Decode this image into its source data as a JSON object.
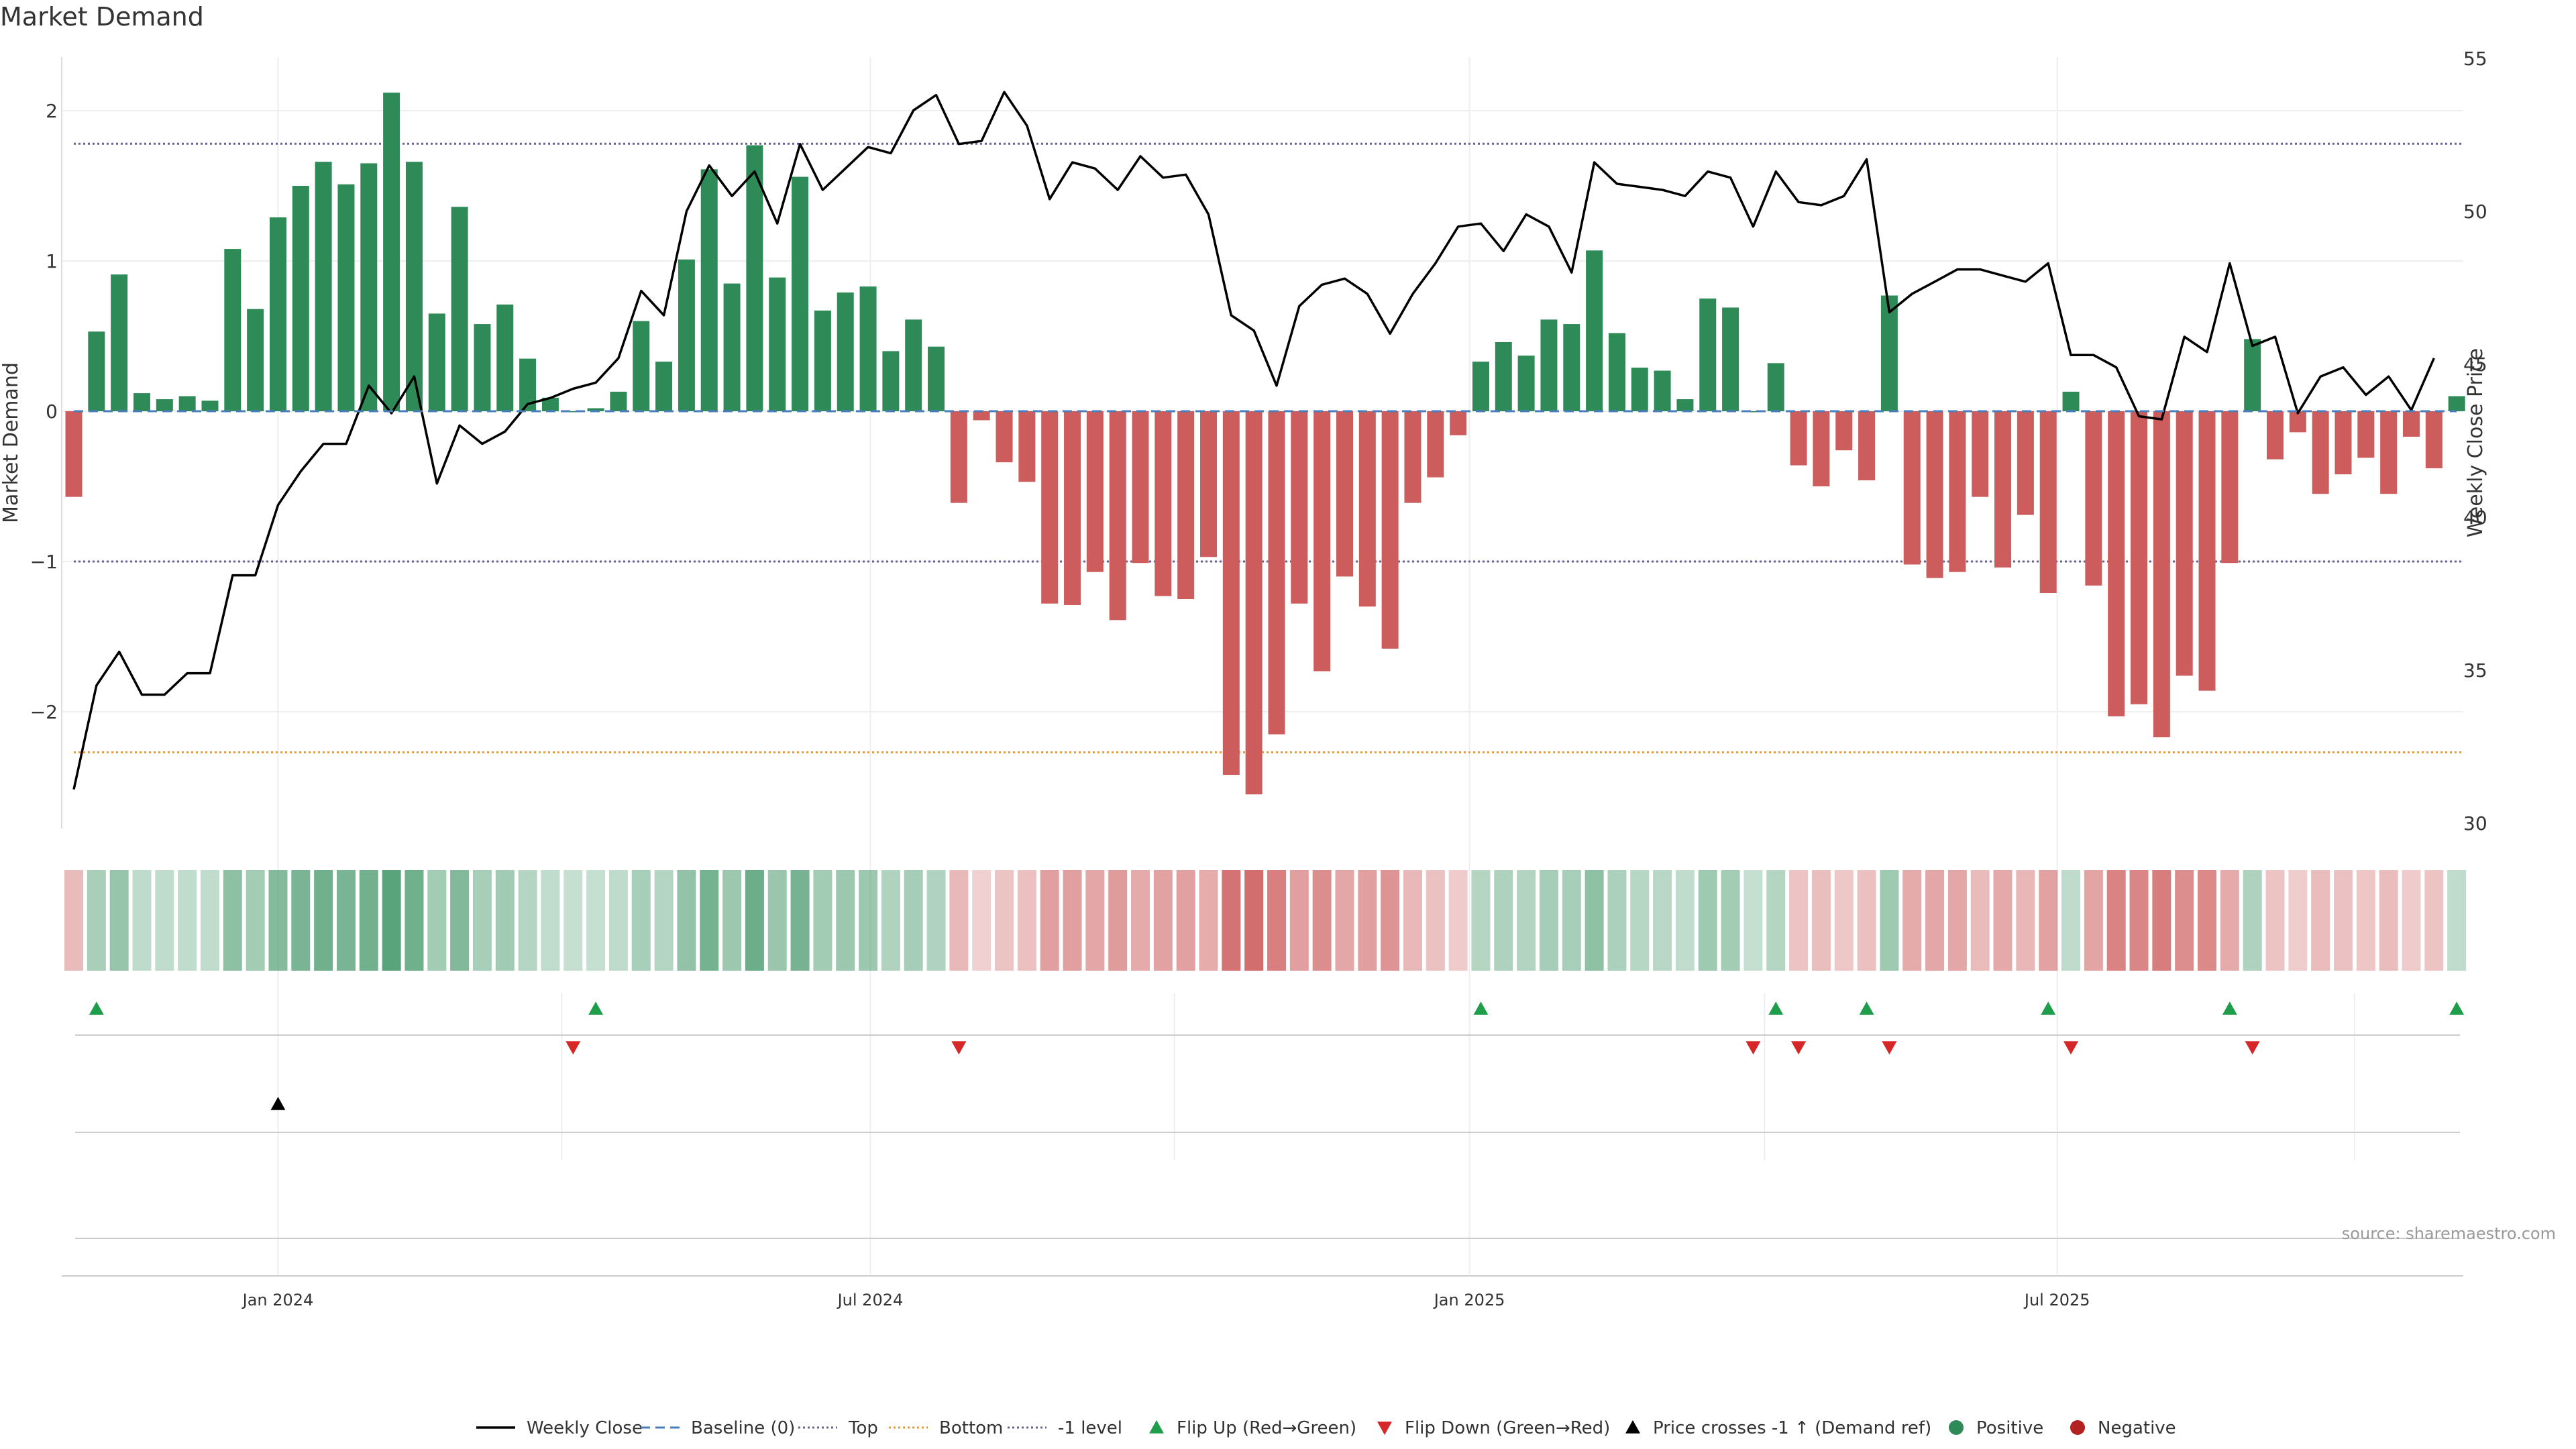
{
  "chart_data": {
    "type": "bar",
    "title": "Market Demand",
    "ylabel_left": "Market Demand",
    "ylabel_right": "Weekly Close Price",
    "source": "source: sharemaestro.com",
    "y_left": {
      "min": -2.8,
      "max": 2.4,
      "ticks": [
        -2,
        -1,
        0,
        1,
        2
      ],
      "tick_labels": [
        "−2",
        "−1",
        "0",
        "1",
        "2"
      ]
    },
    "y_right": {
      "min": 30,
      "max": 55,
      "ticks": [
        30,
        35,
        40,
        45,
        50,
        55
      ],
      "tick_labels": [
        "30",
        "35",
        "40",
        "45",
        "50",
        "55"
      ]
    },
    "x_ticks": [
      {
        "week": 9.0,
        "label": "Jan 2024"
      },
      {
        "week": 35.1,
        "label": "Jul 2024"
      },
      {
        "week": 61.5,
        "label": "Jan 2025"
      },
      {
        "week": 87.4,
        "label": "Jul 2025"
      }
    ],
    "reference_lines": {
      "top": 1.78,
      "bottom": -2.27,
      "minus_one": -1.0,
      "baseline": 0
    },
    "demand": [
      -0.57,
      0.53,
      0.91,
      0.12,
      0.08,
      0.1,
      0.07,
      1.08,
      0.68,
      1.29,
      1.5,
      1.66,
      1.51,
      1.65,
      2.12,
      1.66,
      0.65,
      1.36,
      0.58,
      0.71,
      0.35,
      0.09,
      0.0,
      0.02,
      0.13,
      0.6,
      0.33,
      1.01,
      1.61,
      0.85,
      1.77,
      0.89,
      1.56,
      0.67,
      0.79,
      0.83,
      0.4,
      0.61,
      0.43,
      -0.61,
      -0.06,
      -0.34,
      -0.47,
      -1.28,
      -1.29,
      -1.07,
      -1.39,
      -1.01,
      -1.23,
      -1.25,
      -0.97,
      -2.42,
      -2.55,
      -2.15,
      -1.28,
      -1.73,
      -1.1,
      -1.3,
      -1.58,
      -0.61,
      -0.44,
      -0.16,
      0.33,
      0.46,
      0.37,
      0.61,
      0.58,
      1.07,
      0.52,
      0.29,
      0.27,
      0.08,
      0.75,
      0.69,
      0.0,
      0.32,
      -0.36,
      -0.5,
      -0.26,
      -0.46,
      0.77,
      -1.02,
      -1.11,
      -1.07,
      -0.57,
      -1.04,
      -0.69,
      -1.21,
      0.13,
      -1.16,
      -2.03,
      -1.95,
      -2.17,
      -1.76,
      -1.86,
      -1.01,
      0.48,
      -0.32,
      -0.14,
      -0.55,
      -0.42,
      -0.31,
      -0.55,
      -0.17,
      -0.38,
      0.1
    ],
    "weekly_close": [
      31.1,
      34.5,
      35.6,
      34.2,
      34.2,
      34.9,
      34.9,
      38.1,
      38.1,
      40.4,
      41.5,
      42.4,
      42.4,
      44.3,
      43.4,
      44.6,
      41.1,
      43.0,
      42.4,
      42.8,
      43.7,
      43.9,
      44.2,
      44.4,
      45.2,
      47.4,
      46.6,
      50.0,
      51.5,
      50.5,
      51.3,
      49.6,
      52.2,
      50.7,
      51.4,
      52.1,
      51.9,
      53.3,
      53.8,
      52.2,
      52.3,
      53.9,
      52.8,
      50.4,
      51.6,
      51.4,
      50.7,
      51.8,
      51.1,
      51.2,
      49.9,
      46.6,
      46.1,
      44.3,
      46.9,
      47.6,
      47.8,
      47.3,
      46.0,
      47.3,
      48.3,
      49.5,
      49.6,
      48.7,
      49.9,
      49.5,
      48.0,
      51.6,
      50.9,
      50.8,
      50.7,
      50.5,
      51.3,
      51.1,
      49.5,
      51.3,
      50.3,
      50.2,
      50.5,
      51.7,
      46.7,
      47.3,
      47.7,
      48.1,
      48.1,
      47.9,
      47.7,
      48.3,
      45.3,
      45.3,
      44.9,
      43.3,
      43.2,
      45.9,
      45.4,
      48.3,
      45.6,
      45.9,
      43.4,
      44.6,
      44.9,
      44.0,
      44.6,
      43.5,
      45.2
    ],
    "markers": {
      "flip_up_weeks": [
        1,
        23,
        62,
        75,
        79,
        87,
        95,
        105
      ],
      "flip_down_weeks": [
        22,
        39,
        74,
        76,
        80,
        88,
        96
      ],
      "price_cross_weeks": [
        9
      ]
    },
    "legend": [
      {
        "label": "Weekly Close",
        "style": "solid-line",
        "color": "#000000"
      },
      {
        "label": "Baseline (0)",
        "style": "dashed-line",
        "color": "#4a7ebb"
      },
      {
        "label": "Top",
        "style": "dotted-line",
        "color": "#6a5f8f"
      },
      {
        "label": "Bottom",
        "style": "dotted-line",
        "color": "#e69a3c"
      },
      {
        "label": "-1 level",
        "style": "dotted-line",
        "color": "#6a5f8f"
      },
      {
        "label": "Flip Up (Red→Green)",
        "style": "triangle-up",
        "color": "#1e9e4a"
      },
      {
        "label": "Flip Down (Green→Red)",
        "style": "triangle-down",
        "color": "#d62728"
      },
      {
        "label": "Price crosses -1 ↑ (Demand ref)",
        "style": "triangle-up",
        "color": "#000000"
      },
      {
        "label": "Positive",
        "style": "dot",
        "color": "#2e8b57"
      },
      {
        "label": "Negative",
        "style": "dot",
        "color": "#b22222"
      }
    ],
    "colors": {
      "positive": "#2e8b57",
      "negative": "#cd5c5c",
      "top_line": "#6a5f8f",
      "bottom_line": "#e69a3c",
      "baseline": "#4a7ebb",
      "flip_up": "#1e9e4a",
      "flip_down": "#d62728"
    }
  }
}
